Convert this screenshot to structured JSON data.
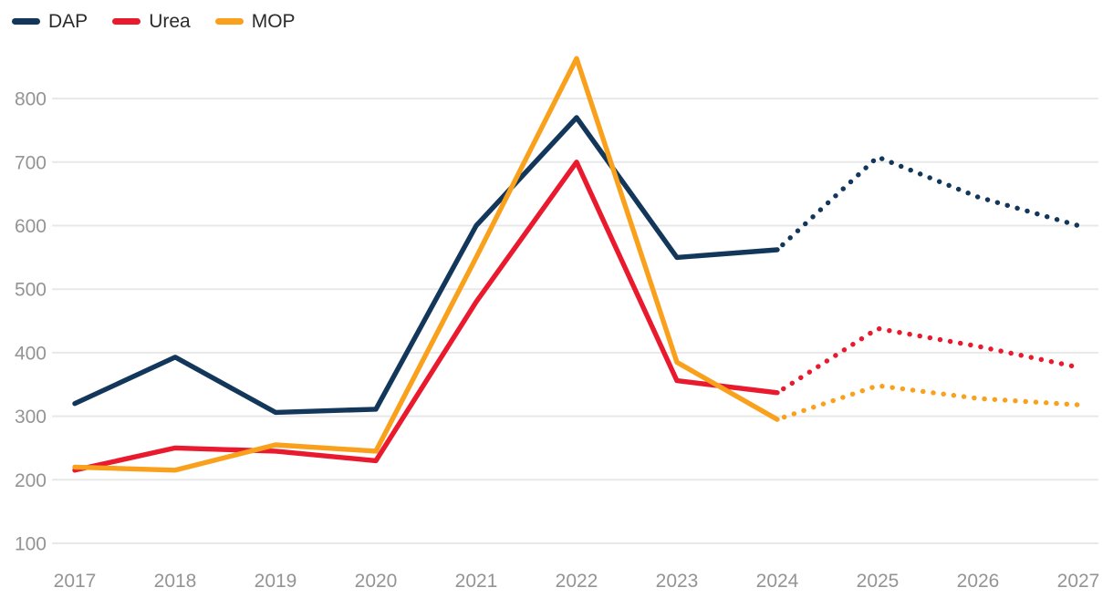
{
  "chart_data": {
    "type": "line",
    "title": "",
    "xlabel": "",
    "ylabel": "",
    "x": [
      2017,
      2018,
      2019,
      2020,
      2021,
      2022,
      2023,
      2024,
      2025,
      2026,
      2027
    ],
    "y_ticks": [
      100,
      200,
      300,
      400,
      500,
      600,
      700,
      800
    ],
    "ylim": [
      100,
      870
    ],
    "grid": "horizontal-only",
    "legend_position": "top-left",
    "forecast_start_year": 2024,
    "forecast_line_style": "dotted",
    "series": [
      {
        "name": "DAP",
        "color": "#12375B",
        "values": [
          320,
          393,
          306,
          311,
          600,
          770,
          550,
          562,
          708,
          645,
          600
        ]
      },
      {
        "name": "Urea",
        "color": "#E9192E",
        "values": [
          215,
          250,
          245,
          230,
          480,
          700,
          356,
          337,
          438,
          410,
          377
        ]
      },
      {
        "name": "MOP",
        "color": "#F9A11C",
        "values": [
          220,
          215,
          255,
          245,
          550,
          863,
          385,
          295,
          348,
          328,
          318
        ]
      }
    ],
    "gridline_color": "#E8E8E8",
    "axis_text_color": "#949494",
    "legend_text_color": "#2B2B2B"
  }
}
